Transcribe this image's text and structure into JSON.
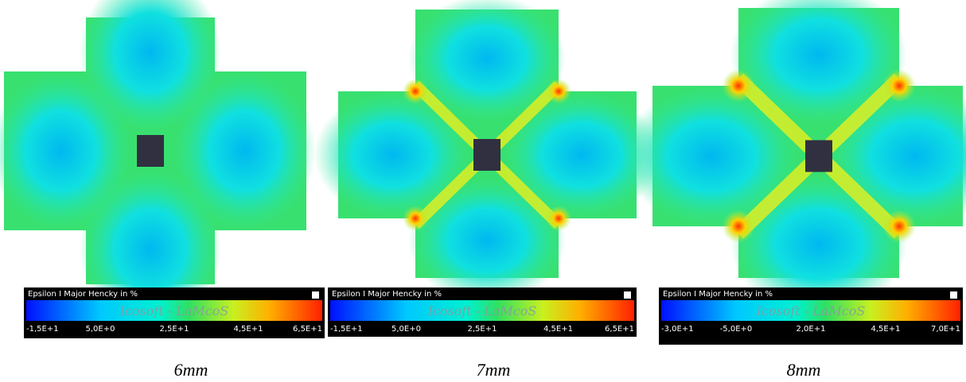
{
  "panels": [
    {
      "colorbar": {
        "title": "Epsilon I Major Hencky in %",
        "watermark": "Icosoft - LaMcoS",
        "ticks": [
          "-1,5E+1",
          "5,0E+0",
          "2,5E+1",
          "4,5E+1",
          "6,5E+1"
        ]
      },
      "caption": "6mm"
    },
    {
      "colorbar": {
        "title": "Epsilon I Major Hencky in %",
        "watermark": "Icosoft - LaMcoS",
        "ticks": [
          "-1,5E+1",
          "5,0E+0",
          "2,5E+1",
          "4,5E+1",
          "6,5E+1"
        ]
      },
      "caption": "7mm"
    },
    {
      "colorbar": {
        "title": "Epsilon I Major Hencky in %",
        "watermark": "Icosoft - LaMcoS",
        "ticks": [
          "-3,0E+1",
          "-5,0E+0",
          "2,0E+1",
          "4,5E+1",
          "7,0E+1"
        ]
      },
      "caption": "8mm"
    }
  ]
}
